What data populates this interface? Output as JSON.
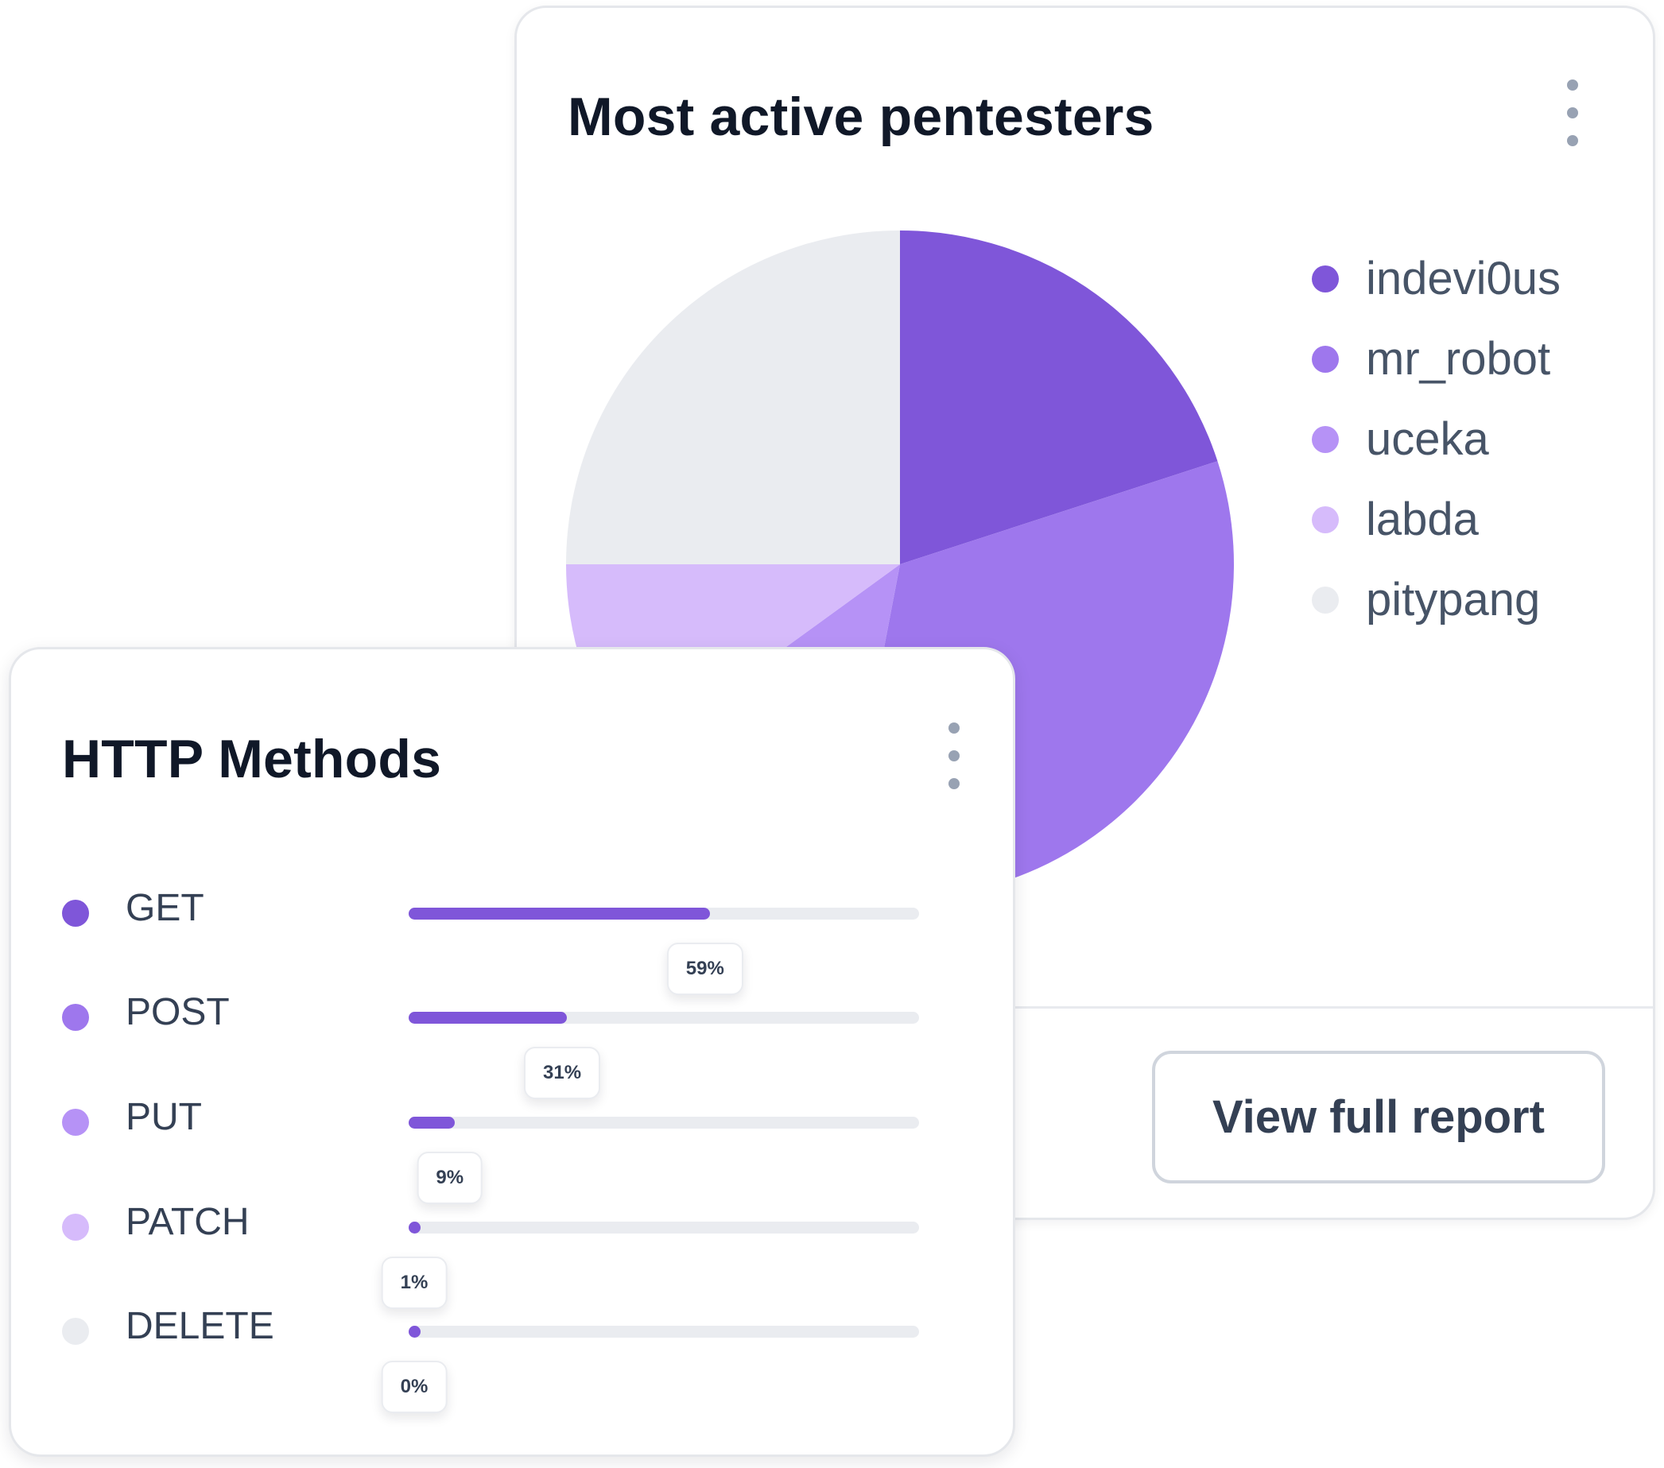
{
  "pentesters_card": {
    "title": "Most active pentesters",
    "menu_icon": "kebab-menu-icon",
    "view_report_label": "View full report",
    "chart_data": {
      "type": "pie",
      "labels": [
        "indevi0us",
        "mr_robot",
        "uceka",
        "labda",
        "pitypang"
      ],
      "values": [
        20,
        33,
        12,
        10,
        25
      ],
      "colors": [
        "#7f56d9",
        "#9e77ed",
        "#b692f6",
        "#d6bbfb",
        "#eaecf0"
      ],
      "legend_position": "right"
    }
  },
  "methods_card": {
    "title": "HTTP Methods",
    "menu_icon": "kebab-menu-icon",
    "accent_color": "#7f56d9",
    "track_color": "#eaecf0",
    "methods": [
      {
        "label": "GET",
        "percent_label": "59%",
        "value": 59,
        "dot_color": "#7f56d9"
      },
      {
        "label": "POST",
        "percent_label": "31%",
        "value": 31,
        "dot_color": "#9e77ed"
      },
      {
        "label": "PUT",
        "percent_label": "9%",
        "value": 9,
        "dot_color": "#b692f6"
      },
      {
        "label": "PATCH",
        "percent_label": "1%",
        "value": 1,
        "dot_color": "#d6bbfb"
      },
      {
        "label": "DELETE",
        "percent_label": "0%",
        "value": 0,
        "dot_color": "#eaecf0"
      }
    ]
  }
}
